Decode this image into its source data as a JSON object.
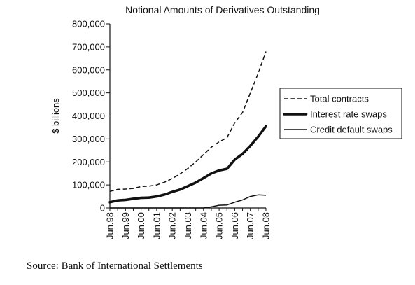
{
  "source_text": "Source: Bank of International Settlements",
  "chart_data": {
    "type": "line",
    "title": "Notional Amounts of Derivatives Outstanding",
    "ylabel": "$ billions",
    "xlabel": "",
    "ylim": [
      0,
      800000
    ],
    "yticks": [
      0,
      100000,
      200000,
      300000,
      400000,
      500000,
      600000,
      700000,
      800000
    ],
    "ytick_labels": [
      "0",
      "100,000",
      "200,000",
      "300,000",
      "400,000",
      "500,000",
      "600,000",
      "700,000",
      "800,000"
    ],
    "xtick_labels": [
      "Jun.98",
      "Jun.99",
      "Jun.00",
      "Jun.01",
      "Jun.02",
      "Jun.03",
      "Jun.04",
      "Jun.05",
      "Jun.06",
      "Jun.07",
      "Jun.08"
    ],
    "legend_position": "right",
    "x": [
      "Jun.98",
      "Dec.98",
      "Jun.99",
      "Dec.99",
      "Jun.00",
      "Dec.00",
      "Jun.01",
      "Dec.01",
      "Jun.02",
      "Dec.02",
      "Jun.03",
      "Dec.03",
      "Jun.04",
      "Dec.04",
      "Jun.05",
      "Dec.05",
      "Jun.06",
      "Dec.06",
      "Jun.07",
      "Dec.07",
      "Jun.08"
    ],
    "series": [
      {
        "name": "Total contracts",
        "style": "dashed",
        "color": "#111111",
        "values": [
          72000,
          81000,
          82000,
          85000,
          93000,
          95000,
          100000,
          112000,
          128000,
          148000,
          172000,
          200000,
          232000,
          264000,
          287000,
          305000,
          370000,
          415000,
          500000,
          585000,
          680000
        ]
      },
      {
        "name": "Interest rate swaps",
        "style": "beaded",
        "color": "#111111",
        "values": [
          25000,
          33000,
          35000,
          40000,
          44000,
          45000,
          50000,
          58000,
          70000,
          80000,
          95000,
          110000,
          130000,
          150000,
          163000,
          170000,
          210000,
          235000,
          270000,
          310000,
          355000
        ]
      },
      {
        "name": "Credit default swaps",
        "style": "solid",
        "color": "#111111",
        "values": [
          0,
          0,
          0,
          0,
          0,
          0,
          0,
          0,
          0,
          0,
          0,
          0,
          0,
          5000,
          12000,
          13000,
          25000,
          35000,
          50000,
          57000,
          55000
        ]
      }
    ]
  }
}
